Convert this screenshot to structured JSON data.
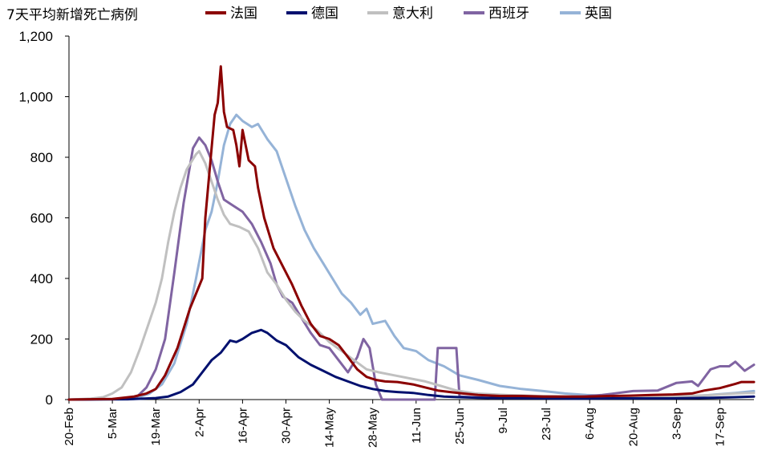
{
  "chart_data": {
    "type": "line",
    "title": "7天平均新增死亡病例",
    "ylim": [
      0,
      1200
    ],
    "yticks": [
      {
        "value": 0,
        "label": "0"
      },
      {
        "value": 200,
        "label": "200"
      },
      {
        "value": 400,
        "label": "400"
      },
      {
        "value": 600,
        "label": "600"
      },
      {
        "value": 800,
        "label": "800"
      },
      {
        "value": 1000,
        "label": "1,000"
      },
      {
        "value": 1200,
        "label": "1,200"
      }
    ],
    "x_range": [
      "2020-02-20",
      "2020-09-28"
    ],
    "xticks": [
      {
        "date": "2020-02-20",
        "label": "20-Feb"
      },
      {
        "date": "2020-03-05",
        "label": "5-Mar"
      },
      {
        "date": "2020-03-19",
        "label": "19-Mar"
      },
      {
        "date": "2020-04-02",
        "label": "2-Apr"
      },
      {
        "date": "2020-04-16",
        "label": "16-Apr"
      },
      {
        "date": "2020-04-30",
        "label": "30-Apr"
      },
      {
        "date": "2020-05-14",
        "label": "14-May"
      },
      {
        "date": "2020-05-28",
        "label": "28-May"
      },
      {
        "date": "2020-06-11",
        "label": "11-Jun"
      },
      {
        "date": "2020-06-25",
        "label": "25-Jun"
      },
      {
        "date": "2020-07-09",
        "label": "9-Jul"
      },
      {
        "date": "2020-07-23",
        "label": "23-Jul"
      },
      {
        "date": "2020-08-06",
        "label": "6-Aug"
      },
      {
        "date": "2020-08-20",
        "label": "20-Aug"
      },
      {
        "date": "2020-09-03",
        "label": "3-Sep"
      },
      {
        "date": "2020-09-17",
        "label": "17-Sep"
      }
    ],
    "grid": false,
    "legend_position": "top",
    "series": [
      {
        "name": "法国",
        "color": "#8b0000",
        "points": [
          [
            "2020-02-20",
            0
          ],
          [
            "2020-03-05",
            2
          ],
          [
            "2020-03-12",
            10
          ],
          [
            "2020-03-16",
            20
          ],
          [
            "2020-03-19",
            35
          ],
          [
            "2020-03-22",
            80
          ],
          [
            "2020-03-26",
            170
          ],
          [
            "2020-03-30",
            300
          ],
          [
            "2020-04-03",
            400
          ],
          [
            "2020-04-04",
            600
          ],
          [
            "2020-04-06",
            830
          ],
          [
            "2020-04-07",
            940
          ],
          [
            "2020-04-08",
            980
          ],
          [
            "2020-04-09",
            1100
          ],
          [
            "2020-04-10",
            950
          ],
          [
            "2020-04-11",
            900
          ],
          [
            "2020-04-13",
            890
          ],
          [
            "2020-04-14",
            840
          ],
          [
            "2020-04-15",
            770
          ],
          [
            "2020-04-16",
            890
          ],
          [
            "2020-04-18",
            790
          ],
          [
            "2020-04-20",
            770
          ],
          [
            "2020-04-21",
            700
          ],
          [
            "2020-04-23",
            600
          ],
          [
            "2020-04-26",
            500
          ],
          [
            "2020-04-29",
            440
          ],
          [
            "2020-05-02",
            380
          ],
          [
            "2020-05-05",
            310
          ],
          [
            "2020-05-08",
            250
          ],
          [
            "2020-05-11",
            210
          ],
          [
            "2020-05-14",
            200
          ],
          [
            "2020-05-17",
            180
          ],
          [
            "2020-05-20",
            140
          ],
          [
            "2020-05-23",
            100
          ],
          [
            "2020-05-26",
            75
          ],
          [
            "2020-05-29",
            65
          ],
          [
            "2020-06-01",
            60
          ],
          [
            "2020-06-05",
            58
          ],
          [
            "2020-06-10",
            50
          ],
          [
            "2020-06-14",
            40
          ],
          [
            "2020-06-18",
            30
          ],
          [
            "2020-06-22",
            25
          ],
          [
            "2020-06-26",
            20
          ],
          [
            "2020-07-01",
            15
          ],
          [
            "2020-07-08",
            12
          ],
          [
            "2020-07-15",
            12
          ],
          [
            "2020-07-22",
            10
          ],
          [
            "2020-07-29",
            10
          ],
          [
            "2020-08-05",
            10
          ],
          [
            "2020-08-12",
            12
          ],
          [
            "2020-08-19",
            13
          ],
          [
            "2020-08-26",
            15
          ],
          [
            "2020-09-02",
            17
          ],
          [
            "2020-09-08",
            20
          ],
          [
            "2020-09-12",
            30
          ],
          [
            "2020-09-17",
            38
          ],
          [
            "2020-09-22",
            52
          ],
          [
            "2020-09-24",
            58
          ],
          [
            "2020-09-28",
            58
          ]
        ]
      },
      {
        "name": "德国",
        "color": "#00106e",
        "points": [
          [
            "2020-02-20",
            0
          ],
          [
            "2020-03-10",
            1
          ],
          [
            "2020-03-19",
            5
          ],
          [
            "2020-03-23",
            10
          ],
          [
            "2020-03-27",
            25
          ],
          [
            "2020-03-31",
            50
          ],
          [
            "2020-04-03",
            90
          ],
          [
            "2020-04-06",
            130
          ],
          [
            "2020-04-09",
            155
          ],
          [
            "2020-04-12",
            195
          ],
          [
            "2020-04-14",
            190
          ],
          [
            "2020-04-16",
            200
          ],
          [
            "2020-04-19",
            220
          ],
          [
            "2020-04-22",
            230
          ],
          [
            "2020-04-24",
            220
          ],
          [
            "2020-04-27",
            195
          ],
          [
            "2020-04-30",
            180
          ],
          [
            "2020-05-04",
            140
          ],
          [
            "2020-05-08",
            115
          ],
          [
            "2020-05-12",
            95
          ],
          [
            "2020-05-16",
            75
          ],
          [
            "2020-05-20",
            60
          ],
          [
            "2020-05-24",
            45
          ],
          [
            "2020-05-28",
            35
          ],
          [
            "2020-06-01",
            28
          ],
          [
            "2020-06-05",
            25
          ],
          [
            "2020-06-10",
            22
          ],
          [
            "2020-06-15",
            15
          ],
          [
            "2020-06-20",
            10
          ],
          [
            "2020-06-25",
            8
          ],
          [
            "2020-07-01",
            6
          ],
          [
            "2020-07-10",
            5
          ],
          [
            "2020-07-20",
            4
          ],
          [
            "2020-08-01",
            3
          ],
          [
            "2020-08-15",
            4
          ],
          [
            "2020-09-01",
            4
          ],
          [
            "2020-09-15",
            6
          ],
          [
            "2020-09-22",
            8
          ],
          [
            "2020-09-28",
            10
          ]
        ]
      },
      {
        "name": "意大利",
        "color": "#c0c0c0",
        "points": [
          [
            "2020-02-20",
            0
          ],
          [
            "2020-02-27",
            3
          ],
          [
            "2020-03-02",
            8
          ],
          [
            "2020-03-05",
            20
          ],
          [
            "2020-03-08",
            40
          ],
          [
            "2020-03-11",
            90
          ],
          [
            "2020-03-14",
            170
          ],
          [
            "2020-03-17",
            260
          ],
          [
            "2020-03-19",
            320
          ],
          [
            "2020-03-21",
            400
          ],
          [
            "2020-03-23",
            520
          ],
          [
            "2020-03-25",
            620
          ],
          [
            "2020-03-27",
            700
          ],
          [
            "2020-03-29",
            760
          ],
          [
            "2020-04-01",
            810
          ],
          [
            "2020-04-02",
            820
          ],
          [
            "2020-04-04",
            780
          ],
          [
            "2020-04-06",
            720
          ],
          [
            "2020-04-08",
            660
          ],
          [
            "2020-04-10",
            610
          ],
          [
            "2020-04-12",
            580
          ],
          [
            "2020-04-15",
            570
          ],
          [
            "2020-04-18",
            555
          ],
          [
            "2020-04-21",
            500
          ],
          [
            "2020-04-24",
            420
          ],
          [
            "2020-04-27",
            380
          ],
          [
            "2020-04-30",
            330
          ],
          [
            "2020-05-03",
            290
          ],
          [
            "2020-05-06",
            260
          ],
          [
            "2020-05-10",
            230
          ],
          [
            "2020-05-14",
            190
          ],
          [
            "2020-05-18",
            160
          ],
          [
            "2020-05-22",
            130
          ],
          [
            "2020-05-26",
            100
          ],
          [
            "2020-05-30",
            90
          ],
          [
            "2020-06-04",
            80
          ],
          [
            "2020-06-09",
            70
          ],
          [
            "2020-06-14",
            60
          ],
          [
            "2020-06-19",
            45
          ],
          [
            "2020-06-24",
            30
          ],
          [
            "2020-06-30",
            20
          ],
          [
            "2020-07-10",
            15
          ],
          [
            "2020-07-20",
            12
          ],
          [
            "2020-08-01",
            10
          ],
          [
            "2020-08-15",
            8
          ],
          [
            "2020-09-01",
            10
          ],
          [
            "2020-09-15",
            15
          ],
          [
            "2020-09-22",
            20
          ],
          [
            "2020-09-28",
            22
          ]
        ]
      },
      {
        "name": "西班牙",
        "color": "#8064a2",
        "points": [
          [
            "2020-02-20",
            0
          ],
          [
            "2020-03-08",
            2
          ],
          [
            "2020-03-13",
            10
          ],
          [
            "2020-03-16",
            40
          ],
          [
            "2020-03-19",
            100
          ],
          [
            "2020-03-22",
            200
          ],
          [
            "2020-03-25",
            420
          ],
          [
            "2020-03-28",
            650
          ],
          [
            "2020-03-31",
            830
          ],
          [
            "2020-04-02",
            865
          ],
          [
            "2020-04-04",
            840
          ],
          [
            "2020-04-06",
            790
          ],
          [
            "2020-04-08",
            720
          ],
          [
            "2020-04-10",
            660
          ],
          [
            "2020-04-13",
            640
          ],
          [
            "2020-04-16",
            620
          ],
          [
            "2020-04-19",
            580
          ],
          [
            "2020-04-22",
            520
          ],
          [
            "2020-04-25",
            450
          ],
          [
            "2020-04-27",
            380
          ],
          [
            "2020-04-29",
            340
          ],
          [
            "2020-05-02",
            320
          ],
          [
            "2020-05-05",
            270
          ],
          [
            "2020-05-08",
            220
          ],
          [
            "2020-05-11",
            180
          ],
          [
            "2020-05-14",
            170
          ],
          [
            "2020-05-17",
            130
          ],
          [
            "2020-05-20",
            90
          ],
          [
            "2020-05-23",
            140
          ],
          [
            "2020-05-25",
            200
          ],
          [
            "2020-05-27",
            170
          ],
          [
            "2020-05-29",
            50
          ],
          [
            "2020-05-31",
            0
          ],
          [
            "2020-06-17",
            0
          ],
          [
            "2020-06-18",
            170
          ],
          [
            "2020-06-24",
            170
          ],
          [
            "2020-06-25",
            10
          ],
          [
            "2020-07-05",
            5
          ],
          [
            "2020-07-20",
            5
          ],
          [
            "2020-08-01",
            8
          ],
          [
            "2020-08-10",
            15
          ],
          [
            "2020-08-20",
            28
          ],
          [
            "2020-08-28",
            30
          ],
          [
            "2020-09-03",
            55
          ],
          [
            "2020-09-08",
            60
          ],
          [
            "2020-09-10",
            45
          ],
          [
            "2020-09-14",
            100
          ],
          [
            "2020-09-17",
            110
          ],
          [
            "2020-09-20",
            110
          ],
          [
            "2020-09-22",
            125
          ],
          [
            "2020-09-25",
            95
          ],
          [
            "2020-09-28",
            115
          ]
        ]
      },
      {
        "name": "英国",
        "color": "#95b3d7",
        "points": [
          [
            "2020-02-20",
            0
          ],
          [
            "2020-03-12",
            2
          ],
          [
            "2020-03-17",
            20
          ],
          [
            "2020-03-21",
            50
          ],
          [
            "2020-03-25",
            120
          ],
          [
            "2020-03-29",
            250
          ],
          [
            "2020-04-01",
            400
          ],
          [
            "2020-04-04",
            560
          ],
          [
            "2020-04-06",
            620
          ],
          [
            "2020-04-08",
            720
          ],
          [
            "2020-04-10",
            840
          ],
          [
            "2020-04-12",
            910
          ],
          [
            "2020-04-14",
            940
          ],
          [
            "2020-04-16",
            920
          ],
          [
            "2020-04-19",
            900
          ],
          [
            "2020-04-21",
            910
          ],
          [
            "2020-04-24",
            860
          ],
          [
            "2020-04-27",
            820
          ],
          [
            "2020-04-30",
            730
          ],
          [
            "2020-05-03",
            640
          ],
          [
            "2020-05-06",
            560
          ],
          [
            "2020-05-09",
            500
          ],
          [
            "2020-05-12",
            450
          ],
          [
            "2020-05-15",
            400
          ],
          [
            "2020-05-18",
            350
          ],
          [
            "2020-05-21",
            320
          ],
          [
            "2020-05-24",
            280
          ],
          [
            "2020-05-26",
            300
          ],
          [
            "2020-05-28",
            250
          ],
          [
            "2020-06-01",
            260
          ],
          [
            "2020-06-04",
            210
          ],
          [
            "2020-06-07",
            170
          ],
          [
            "2020-06-11",
            160
          ],
          [
            "2020-06-15",
            130
          ],
          [
            "2020-06-20",
            110
          ],
          [
            "2020-06-25",
            80
          ],
          [
            "2020-07-01",
            65
          ],
          [
            "2020-07-08",
            45
          ],
          [
            "2020-07-15",
            35
          ],
          [
            "2020-07-22",
            28
          ],
          [
            "2020-07-29",
            20
          ],
          [
            "2020-08-05",
            15
          ],
          [
            "2020-08-12",
            12
          ],
          [
            "2020-08-19",
            10
          ],
          [
            "2020-08-26",
            10
          ],
          [
            "2020-09-02",
            10
          ],
          [
            "2020-09-10",
            12
          ],
          [
            "2020-09-17",
            18
          ],
          [
            "2020-09-22",
            22
          ],
          [
            "2020-09-28",
            28
          ]
        ]
      }
    ]
  }
}
